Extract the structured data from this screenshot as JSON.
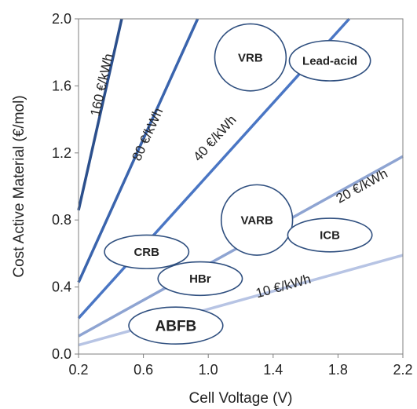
{
  "chart_data": {
    "type": "scatter",
    "title": "",
    "xlabel": "Cell Voltage (V)",
    "ylabel": "Cost Active Material (€/mol)",
    "xlim": [
      0.2,
      2.2
    ],
    "ylim": [
      0.0,
      2.0
    ],
    "x_ticks": [
      "0.2",
      "0.6",
      "1.0",
      "1.4",
      "1.8",
      "2.2"
    ],
    "y_ticks": [
      "0.0",
      "0.4",
      "0.8",
      "1.2",
      "1.6",
      "2.0"
    ],
    "grid": false,
    "colors": {
      "line_160": "#2b4f8c",
      "line_80": "#3a64ad",
      "line_40": "#4a76c4",
      "line_20": "#8ea4d2",
      "line_10": "#b7c4e4",
      "bubble_stroke": "#2f4f7f"
    },
    "iso_cost_lines": [
      {
        "label": "160 €/kWh",
        "slope": 4.29,
        "color_key": "line_160"
      },
      {
        "label": "80 €/kWh",
        "slope": 2.14,
        "color_key": "line_80"
      },
      {
        "label": "40 €/kWh",
        "slope": 1.07,
        "color_key": "line_40"
      },
      {
        "label": "20 €/kWh",
        "slope": 0.536,
        "color_key": "line_20"
      },
      {
        "label": "10 €/kWh",
        "slope": 0.268,
        "color_key": "line_10"
      }
    ],
    "systems": [
      {
        "label": "VRB",
        "x": 1.26,
        "y": 1.77,
        "rx": 0.22,
        "ry": 0.2,
        "font": 15
      },
      {
        "label": "Lead-acid",
        "x": 1.75,
        "y": 1.75,
        "rx": 0.25,
        "ry": 0.12,
        "font": 15
      },
      {
        "label": "VARB",
        "x": 1.3,
        "y": 0.8,
        "rx": 0.22,
        "ry": 0.21,
        "font": 15
      },
      {
        "label": "ICB",
        "x": 1.75,
        "y": 0.71,
        "rx": 0.26,
        "ry": 0.1,
        "font": 15
      },
      {
        "label": "CRB",
        "x": 0.62,
        "y": 0.61,
        "rx": 0.26,
        "ry": 0.1,
        "font": 15
      },
      {
        "label": "HBr",
        "x": 0.95,
        "y": 0.45,
        "rx": 0.26,
        "ry": 0.1,
        "font": 15
      },
      {
        "label": "ABFB",
        "x": 0.8,
        "y": 0.17,
        "rx": 0.29,
        "ry": 0.11,
        "font": 19
      }
    ]
  }
}
